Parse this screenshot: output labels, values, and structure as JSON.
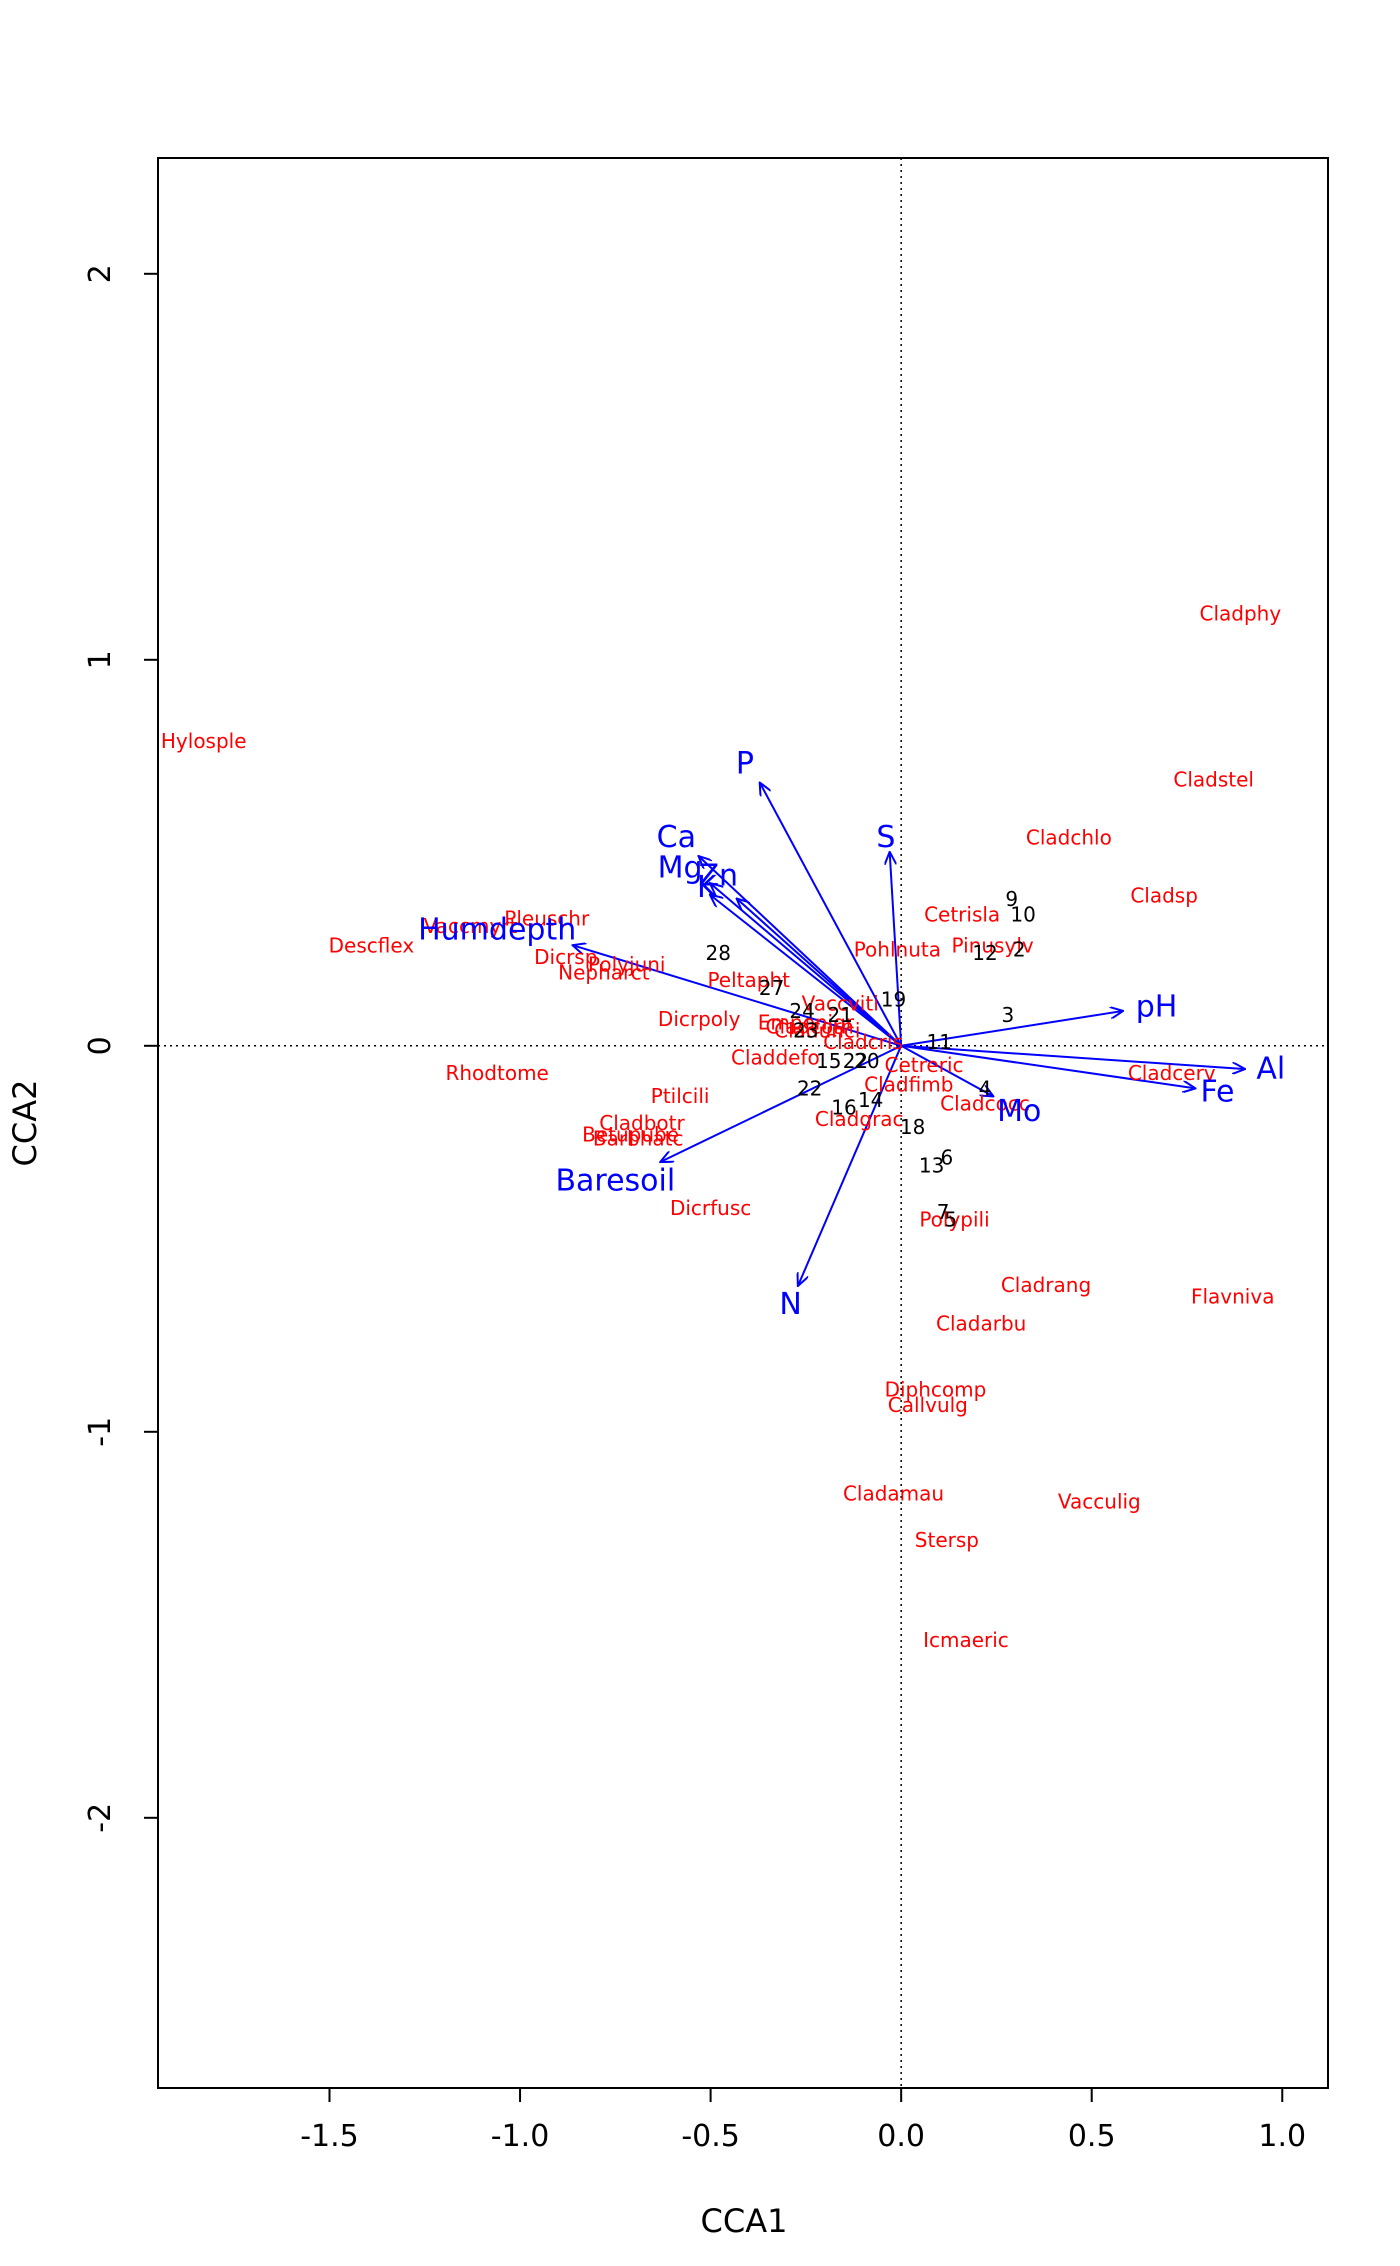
{
  "chart_data": {
    "type": "scatter",
    "xlabel": "CCA1",
    "ylabel": "CCA2",
    "xlim": [
      -1.95,
      1.12
    ],
    "ylim": [
      -2.7,
      2.3
    ],
    "xticks": [
      "-1.5",
      "-1.0",
      "-0.5",
      "0.0",
      "0.5",
      "1.0"
    ],
    "yticks": [
      "-2",
      "-1",
      "0",
      "1",
      "2"
    ],
    "reference_lines": "dotted lines at x = 0 and y = 0",
    "colors": {
      "species": "#ff0000",
      "sites": "#000000",
      "arrows": "#0000ff"
    },
    "species": [
      {
        "label": "Cladphy",
        "x": 0.89,
        "y": 1.12
      },
      {
        "label": "Cladstel",
        "x": 0.82,
        "y": 0.69
      },
      {
        "label": "Hylosple",
        "x": -1.83,
        "y": 0.79
      },
      {
        "label": "Cladchlo",
        "x": 0.44,
        "y": 0.54
      },
      {
        "label": "Cladsp",
        "x": 0.69,
        "y": 0.39
      },
      {
        "label": "Cetrisla",
        "x": 0.16,
        "y": 0.34
      },
      {
        "label": "Pinusylv",
        "x": 0.24,
        "y": 0.26
      },
      {
        "label": "Pohlnuta",
        "x": -0.01,
        "y": 0.25
      },
      {
        "label": "Pleuschr",
        "x": -0.93,
        "y": 0.33
      },
      {
        "label": "Vaccmyrt",
        "x": -1.13,
        "y": 0.31
      },
      {
        "label": "Dicrsp",
        "x": -0.88,
        "y": 0.23
      },
      {
        "label": "Descflex",
        "x": -1.39,
        "y": 0.26
      },
      {
        "label": "Polyjuni",
        "x": -0.72,
        "y": 0.21
      },
      {
        "label": "Nepharct",
        "x": -0.78,
        "y": 0.19
      },
      {
        "label": "Peltapht",
        "x": -0.4,
        "y": 0.17
      },
      {
        "label": "Dicrpoly",
        "x": -0.53,
        "y": 0.07
      },
      {
        "label": "Vaccviti",
        "x": -0.16,
        "y": 0.11
      },
      {
        "label": "Empenigr",
        "x": -0.25,
        "y": 0.06
      },
      {
        "label": "Cladunci",
        "x": -0.22,
        "y": 0.04
      },
      {
        "label": "Cladcorn",
        "x": -0.24,
        "y": 0.05
      },
      {
        "label": "Claddefo",
        "x": -0.33,
        "y": -0.03
      },
      {
        "label": "Cladcris",
        "x": -0.1,
        "y": 0.01
      },
      {
        "label": "Cetreric",
        "x": 0.06,
        "y": -0.05
      },
      {
        "label": "Cladfimb",
        "x": 0.02,
        "y": -0.1
      },
      {
        "label": "Cladcocc",
        "x": 0.22,
        "y": -0.15
      },
      {
        "label": "Cladgrac",
        "x": -0.11,
        "y": -0.19
      },
      {
        "label": "Cladcerv",
        "x": 0.71,
        "y": -0.07
      },
      {
        "label": "Rhodtome",
        "x": -1.06,
        "y": -0.07
      },
      {
        "label": "Ptilcili",
        "x": -0.58,
        "y": -0.13
      },
      {
        "label": "Cladbotr",
        "x": -0.68,
        "y": -0.2
      },
      {
        "label": "Betupube",
        "x": -0.71,
        "y": -0.23
      },
      {
        "label": "Barbhatc",
        "x": -0.69,
        "y": -0.24
      },
      {
        "label": "Dicrfusc",
        "x": -0.5,
        "y": -0.42
      },
      {
        "label": "Polypili",
        "x": 0.14,
        "y": -0.45
      },
      {
        "label": "Cladrang",
        "x": 0.38,
        "y": -0.62
      },
      {
        "label": "Flavniva",
        "x": 0.87,
        "y": -0.65
      },
      {
        "label": "Cladarbu",
        "x": 0.21,
        "y": -0.72
      },
      {
        "label": "Diphcomp",
        "x": 0.09,
        "y": -0.89
      },
      {
        "label": "Callvulg",
        "x": 0.07,
        "y": -0.93
      },
      {
        "label": "Cladamau",
        "x": -0.02,
        "y": -1.16
      },
      {
        "label": "Vacculig",
        "x": 0.52,
        "y": -1.18
      },
      {
        "label": "Stersp",
        "x": 0.12,
        "y": -1.28
      },
      {
        "label": "Icmaeric",
        "x": 0.17,
        "y": -1.54
      }
    ],
    "sites": [
      {
        "label": "9",
        "x": 0.29,
        "y": 0.38
      },
      {
        "label": "10",
        "x": 0.32,
        "y": 0.34
      },
      {
        "label": "12",
        "x": 0.22,
        "y": 0.24
      },
      {
        "label": "2",
        "x": 0.31,
        "y": 0.25
      },
      {
        "label": "28",
        "x": -0.48,
        "y": 0.24
      },
      {
        "label": "27",
        "x": -0.34,
        "y": 0.15
      },
      {
        "label": "19",
        "x": -0.02,
        "y": 0.12
      },
      {
        "label": "3",
        "x": 0.28,
        "y": 0.08
      },
      {
        "label": "24",
        "x": -0.26,
        "y": 0.09
      },
      {
        "label": "21",
        "x": -0.16,
        "y": 0.08
      },
      {
        "label": "23",
        "x": -0.25,
        "y": 0.04
      },
      {
        "label": "11",
        "x": 0.1,
        "y": 0.01
      },
      {
        "label": "15",
        "x": -0.19,
        "y": -0.04
      },
      {
        "label": "22",
        "x": -0.12,
        "y": -0.04
      },
      {
        "label": "20",
        "x": -0.09,
        "y": -0.04
      },
      {
        "label": "22",
        "x": -0.24,
        "y": -0.11
      },
      {
        "label": "14",
        "x": -0.08,
        "y": -0.14
      },
      {
        "label": "16",
        "x": -0.15,
        "y": -0.16
      },
      {
        "label": "4",
        "x": 0.22,
        "y": -0.11
      },
      {
        "label": "18",
        "x": 0.03,
        "y": -0.21
      },
      {
        "label": "13",
        "x": 0.08,
        "y": -0.31
      },
      {
        "label": "6",
        "x": 0.12,
        "y": -0.29
      },
      {
        "label": "7",
        "x": 0.11,
        "y": -0.43
      },
      {
        "label": "5",
        "x": 0.13,
        "y": -0.45
      }
    ],
    "biplot_arrows": [
      {
        "label": "P",
        "x": -0.37,
        "y": 0.68,
        "label_x": -0.41,
        "label_y": 0.73
      },
      {
        "label": "S",
        "x": -0.03,
        "y": 0.5,
        "label_x": -0.04,
        "label_y": 0.54
      },
      {
        "label": "Ca",
        "x": -0.53,
        "y": 0.49,
        "label_x": -0.59,
        "label_y": 0.54
      },
      {
        "label": "Mg",
        "x": -0.5,
        "y": 0.42,
        "label_x": -0.58,
        "label_y": 0.46
      },
      {
        "label": "Zn",
        "x": -0.43,
        "y": 0.38,
        "label_x": -0.48,
        "label_y": 0.44
      },
      {
        "label": "K",
        "x": -0.5,
        "y": 0.39,
        "label_x": -0.51,
        "label_y": 0.41
      },
      {
        "label": "Humdepth",
        "x": -0.86,
        "y": 0.26,
        "label_x": -1.06,
        "label_y": 0.3
      },
      {
        "label": "pH",
        "x": 0.58,
        "y": 0.09,
        "label_x": 0.67,
        "label_y": 0.1
      },
      {
        "label": "Al",
        "x": 0.9,
        "y": -0.06,
        "label_x": 0.97,
        "label_y": -0.06
      },
      {
        "label": "Fe",
        "x": 0.77,
        "y": -0.11,
        "label_x": 0.83,
        "label_y": -0.12
      },
      {
        "label": "Mo",
        "x": 0.24,
        "y": -0.13,
        "label_x": 0.31,
        "label_y": -0.17
      },
      {
        "label": "Baresoil",
        "x": -0.63,
        "y": -0.3,
        "label_x": -0.75,
        "label_y": -0.35
      },
      {
        "label": "N",
        "x": -0.27,
        "y": -0.62,
        "label_x": -0.29,
        "label_y": -0.67
      }
    ]
  }
}
